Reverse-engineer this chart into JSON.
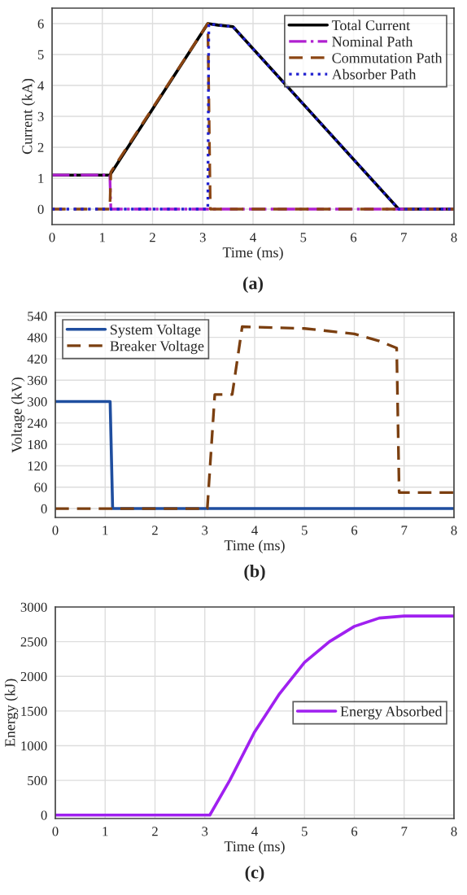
{
  "chart_data": [
    {
      "type": "line",
      "xlabel": "Time (ms)",
      "ylabel": "Current (kA)",
      "xlim": [
        0,
        8
      ],
      "xticks": [
        0,
        1,
        2,
        3,
        4,
        5,
        6,
        7,
        8
      ],
      "ylim": [
        -0.5,
        6.5
      ],
      "yticks": [
        0,
        1,
        2,
        3,
        4,
        5,
        6
      ],
      "grid": true,
      "legend": "top right",
      "annotations": [
        "(a)"
      ],
      "series": [
        {
          "name": "Total Current",
          "color": "#000000",
          "line_style": "solid",
          "x": [
            0,
            1.15,
            3.1,
            3.3,
            3.6,
            6.9,
            8
          ],
          "values": [
            1.1,
            1.1,
            6,
            5.95,
            5.9,
            0,
            0
          ]
        },
        {
          "name": "Nominal Path",
          "color": "#b020d0",
          "line_style": "dashdot",
          "x": [
            0,
            1.15,
            1.17,
            8
          ],
          "values": [
            1.1,
            1.1,
            0,
            0
          ]
        },
        {
          "name": "Commutation Path",
          "color": "#8b4513",
          "line_style": "dashed",
          "x": [
            0,
            1.15,
            1.17,
            3.1,
            3.15,
            8
          ],
          "values": [
            0,
            0,
            1.2,
            6,
            0,
            0
          ]
        },
        {
          "name": "Absorber Path",
          "color": "#2020d0",
          "line_style": "dotted",
          "x": [
            0,
            3.1,
            3.12,
            3.3,
            3.6,
            6.9,
            8
          ],
          "values": [
            0,
            0,
            6,
            5.95,
            5.9,
            0,
            0
          ]
        }
      ]
    },
    {
      "type": "line",
      "xlabel": "Time (ms)",
      "ylabel": "Voltage (kV)",
      "xlim": [
        0,
        8
      ],
      "xticks": [
        0,
        1,
        2,
        3,
        4,
        5,
        6,
        7,
        8
      ],
      "ylim": [
        -25,
        550
      ],
      "yticks": [
        0,
        60,
        120,
        180,
        240,
        300,
        360,
        420,
        480,
        540
      ],
      "grid": true,
      "legend": "top left",
      "annotations": [
        "(b)"
      ],
      "series": [
        {
          "name": "System Voltage",
          "color": "#1f4e9f",
          "line_style": "solid",
          "x": [
            0,
            1.1,
            1.15,
            8
          ],
          "values": [
            300,
            300,
            0,
            0
          ]
        },
        {
          "name": "Breaker Voltage",
          "color": "#7b3f10",
          "line_style": "dashed",
          "x": [
            0,
            3.05,
            3.2,
            3.55,
            3.75,
            5,
            6,
            6.5,
            6.85,
            6.9,
            8
          ],
          "values": [
            0,
            0,
            320,
            320,
            510,
            505,
            490,
            470,
            450,
            45,
            45
          ]
        }
      ]
    },
    {
      "type": "line",
      "xlabel": "Time (ms)",
      "ylabel": "Energy (kJ)",
      "xlim": [
        0,
        8
      ],
      "xticks": [
        0,
        1,
        2,
        3,
        4,
        5,
        6,
        7,
        8
      ],
      "ylim": [
        -50,
        3000
      ],
      "yticks": [
        0,
        500,
        1000,
        1500,
        2000,
        2500,
        3000
      ],
      "grid": true,
      "legend": "center right",
      "annotations": [
        "(c)"
      ],
      "series": [
        {
          "name": "Energy Absorbed",
          "color": "#a020f0",
          "line_style": "solid",
          "x": [
            0,
            3.1,
            3.5,
            4,
            4.5,
            5,
            5.5,
            6,
            6.5,
            7,
            8
          ],
          "values": [
            0,
            0,
            500,
            1200,
            1750,
            2200,
            2500,
            2720,
            2840,
            2870,
            2870
          ]
        }
      ]
    }
  ]
}
